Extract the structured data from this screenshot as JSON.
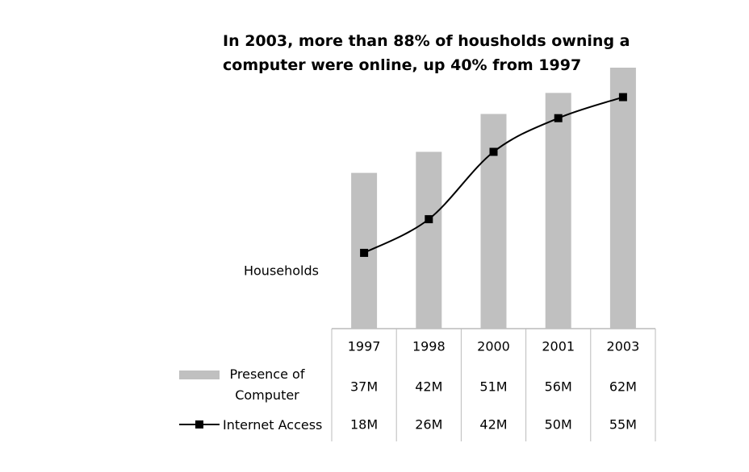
{
  "chart_data": {
    "type": "bar-line",
    "title": "In 2003, more than 88% of housholds owning a computer were online, up 40% from 1997",
    "y_label": "Households",
    "categories": [
      "1997",
      "1998",
      "2000",
      "2001",
      "2003"
    ],
    "series": [
      {
        "name": "Presence of Computer",
        "type": "bar",
        "color": "#c0c0c0",
        "values": [
          37,
          42,
          51,
          56,
          62
        ],
        "value_labels": [
          "37M",
          "42M",
          "51M",
          "56M",
          "62M"
        ]
      },
      {
        "name": "Internet Access",
        "type": "line",
        "color": "#000000",
        "values": [
          18,
          26,
          42,
          50,
          55
        ],
        "value_labels": [
          "18M",
          "26M",
          "42M",
          "50M",
          "55M"
        ]
      }
    ]
  }
}
